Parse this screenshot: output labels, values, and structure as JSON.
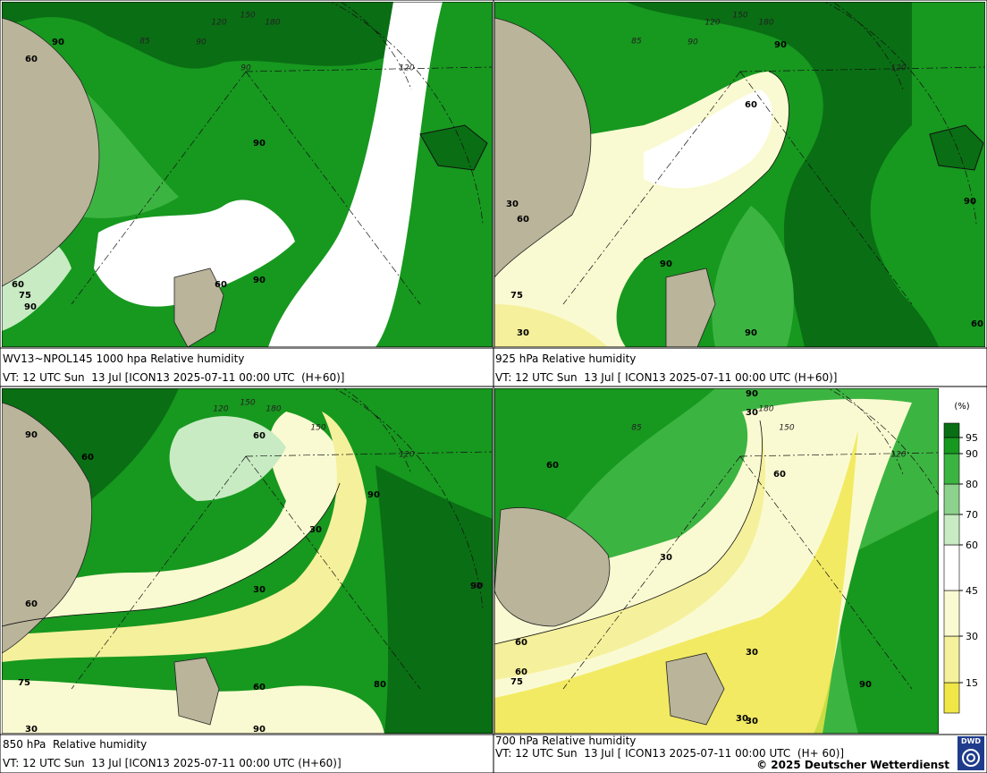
{
  "panels": [
    {
      "caption": "WV13~NPOL145 1000 hpa Relative humidity",
      "valid_time": "VT: 12 UTC Sun  13 Jul [ICON13 2025-07-11 00:00 UTC  (H+60)]",
      "contour_labels": [
        "90",
        "60",
        "90",
        "90",
        "60",
        "75",
        "90",
        "60"
      ],
      "grid_labels": [
        "85",
        "90",
        "120",
        "150",
        "180",
        "120",
        "90"
      ]
    },
    {
      "caption": "925 hPa Relative humidity",
      "valid_time": "VT: 12 UTC Sun  13 Jul [ ICON13 2025-07-11 00:00 UTC (H+60)]",
      "contour_labels": [
        "90",
        "60",
        "60",
        "90",
        "30",
        "90",
        "60",
        "75",
        "30",
        "90"
      ],
      "grid_labels": [
        "85",
        "90",
        "120",
        "150",
        "180",
        "120"
      ]
    },
    {
      "caption": "850 hPa  Relative humidity",
      "valid_time": "VT: 12 UTC Sun  13 Jul [ICON13 2025-07-11 00:00 UTC (H+60)]",
      "contour_labels": [
        "90",
        "60",
        "60",
        "90",
        "30",
        "30",
        "60",
        "60",
        "90",
        "30",
        "75",
        "80",
        "90"
      ],
      "grid_labels": [
        "120",
        "150",
        "180",
        "150",
        "120"
      ]
    },
    {
      "caption": "700 hPa Relative humidity",
      "valid_time": "VT: 12 UTC Sun  13 Jul [ ICON13 2025-07-11 00:00 UTC  (H+ 60)]",
      "contour_labels": [
        "90",
        "30",
        "60",
        "60",
        "30",
        "30",
        "60",
        "30",
        "60",
        "90",
        "75",
        "30"
      ],
      "grid_labels": [
        "85",
        "180",
        "150",
        "120",
        "90"
      ]
    }
  ],
  "colorbar": {
    "unit": "(%)",
    "levels": [
      15,
      30,
      45,
      60,
      70,
      80,
      90,
      95
    ],
    "colors": [
      "#f0e646",
      "#f5f09b",
      "#fafad2",
      "#ffffff",
      "#c8ebc3",
      "#8cd28c",
      "#3cb441",
      "#17981f",
      "#0a6e14"
    ]
  },
  "footer": {
    "copyright": "© 2025 Deutscher Wetterdienst",
    "logo": "DWD"
  }
}
